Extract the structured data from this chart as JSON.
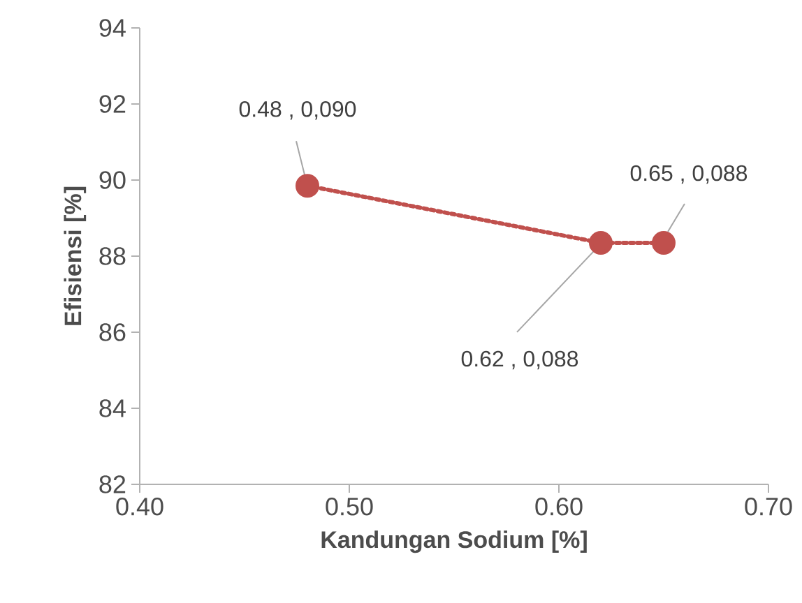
{
  "chart_data": {
    "type": "line",
    "xlabel": "Kandungan Sodium [%]",
    "ylabel": "Efisiensi [%]",
    "xlim": [
      0.4,
      0.7
    ],
    "xticks": [
      {
        "value": 0.4,
        "label": "0.40"
      },
      {
        "value": 0.5,
        "label": "0.50"
      },
      {
        "value": 0.6,
        "label": "0.60"
      },
      {
        "value": 0.7,
        "label": "0.70"
      }
    ],
    "ylim": [
      82,
      94
    ],
    "yticks": [
      82,
      84,
      86,
      88,
      90,
      92,
      94
    ],
    "marker": "circle",
    "line_style": "dotted",
    "series": [
      {
        "color": "#c0504d",
        "x": [
          0.48,
          0.62,
          0.65
        ],
        "values": [
          89.85,
          88.35,
          88.35
        ]
      }
    ],
    "annotations": [
      {
        "text": "0.48 , 0,090",
        "x": 0.48,
        "y": 89.85
      },
      {
        "text": "0.62 , 0,088",
        "x": 0.62,
        "y": 88.35
      },
      {
        "text": "0.65 , 0,088",
        "x": 0.65,
        "y": 88.35
      }
    ]
  }
}
